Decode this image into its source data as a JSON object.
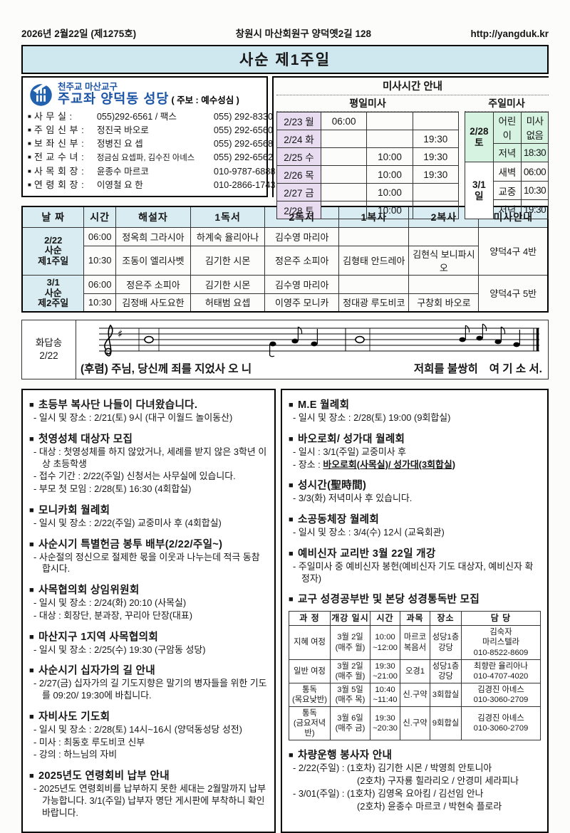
{
  "glyphs": {
    "bullet": "■"
  },
  "colors": {
    "title_fill": "#cfe7ef",
    "table_header_fill": "#d8ecf2",
    "weekday_date_fill": "#e7dcf0",
    "saturday_fill": "#d6f2e0",
    "logo_blue": "#1c55a6"
  },
  "page_header": {
    "date_issue": "2026년 2월22일 (제1275호)",
    "address": "창원시 마산회원구 양덕옛2길 128",
    "url": "http://yangduk.kr"
  },
  "title": "사순 제1주일",
  "church": {
    "diocese": "천주교 마산교구",
    "name": "주교좌 양덕동 성당",
    "patron_note": "( 주보 : 예수성심 )",
    "contacts": [
      {
        "label": "사  무  실 :",
        "value": "055)292-6561 / 팩스",
        "phone": "055) 292-8330"
      },
      {
        "label": "주 임 신 부 :",
        "value": "정진국 바오로",
        "phone": "055) 292-6560"
      },
      {
        "label": "보 좌 신 부 :",
        "value": "정병진 요  셉",
        "phone": "055) 292-6568"
      },
      {
        "label": "전 교 수 녀 :",
        "value": "정금심 요셉파, 김수진 아녜스",
        "phone": "055) 292-6562"
      },
      {
        "label": "사 목 회 장 :",
        "value": "윤종수 마르코",
        "phone": "010-9787-6888"
      },
      {
        "label": "연 령 회 장 :",
        "value": "이영철 요  한",
        "phone": "010-2866-1743"
      }
    ]
  },
  "mass_times": {
    "title": "미사시간 안내",
    "weekday": {
      "header": "평일미사",
      "rows": [
        {
          "day": "2/23 월",
          "t1": "06:00",
          "t2": "",
          "t3": ""
        },
        {
          "day": "2/24 화",
          "t1": "",
          "t2": "",
          "t3": "19:30"
        },
        {
          "day": "2/25 수",
          "t1": "",
          "t2": "10:00",
          "t3": "19:30"
        },
        {
          "day": "2/26 목",
          "t1": "",
          "t2": "10:00",
          "t3": "19:30"
        },
        {
          "day": "2/27 금",
          "t1": "",
          "t2": "10:00",
          "t3": ""
        },
        {
          "day": "2/28 토",
          "t1": "",
          "t2": "10:00",
          "t3": ""
        }
      ]
    },
    "sunday": {
      "header": "주일미사",
      "groups": [
        {
          "day": "2/28\n토",
          "green": true,
          "rows": [
            [
              "어린이",
              "미사없음"
            ],
            [
              "저녁",
              "18:30"
            ]
          ]
        },
        {
          "day": "3/1\n일",
          "green": false,
          "rows": [
            [
              "새벽",
              "06:00"
            ],
            [
              "교중",
              "10:30"
            ],
            [
              "저녁",
              "19:30"
            ]
          ]
        }
      ]
    }
  },
  "schedule_table": {
    "headers": [
      "날 짜",
      "시간",
      "해설자",
      "1독서",
      "2독서",
      "1복사",
      "2복사",
      "미사안내"
    ],
    "groups": [
      {
        "date": "2/22\n사순\n제1주일",
        "mass_note": "양덕4구  4반",
        "rows": [
          [
            "06:00",
            "정옥희 그라시아",
            "하계숙 율리아나",
            "김수영 마리아",
            "",
            ""
          ],
          [
            "10:30",
            "조동이 엘리사벳",
            "김기한 시몬",
            "정은주 소피아",
            "김형태 안드레아",
            "김현식 보니파시오"
          ]
        ]
      },
      {
        "date": "3/1\n사순\n제2주일",
        "mass_note": "양덕4구  5반",
        "rows": [
          [
            "06:00",
            "정은주 소피아",
            "김기한 시몬",
            "김수영 마리아",
            "",
            ""
          ],
          [
            "10:30",
            "김정배 사도요한",
            "허태범 요셉",
            "이영주 모니카",
            "정대광 루도비코",
            "구창회 바오로"
          ]
        ]
      }
    ]
  },
  "psalm": {
    "label": "화답송\n2/22",
    "lyric_seg1": "(후렴) 주님, 당신께 죄를 지었사 오 니",
    "lyric_seg2": "저희를 불쌍히",
    "lyric_seg3": "여 기 소 서."
  },
  "announcements": {
    "left": [
      {
        "title": "초등부 복사단 나들이 다녀왔습니다.",
        "lines": [
          "- 일시 및 장소 : 2/21(토) 9시 (대구 이월드 놀이동산)"
        ]
      },
      {
        "title": "첫영성체 대상자 모집",
        "lines": [
          "- 대상 : 첫영성체를 하지 않았거나, 세례를 받지 않은 3학년 이상 초등학생",
          "- 접수 기간 : 2/22(주일) 신청서는 사무실에 있습니다.",
          "- 부모 첫 모임 : 2/28(토) 16:30 (4회합실)"
        ]
      },
      {
        "title": "모니카회 월례회",
        "lines": [
          "- 일시 및 장소 : 2/22(주일) 교중미사 후 (4회합실)"
        ]
      },
      {
        "title": "사순시기 특별헌금 봉투 배부(2/22/주일~)",
        "lines": [
          "- 사순절의 정신으로 절제한 몫을 이웃과 나누는데 적극 동참합시다."
        ]
      },
      {
        "title": "사목협의회 상임위원회",
        "lines": [
          "- 일시 및 장소 : 2/24(화) 20:10 (사목실)",
          "- 대상 : 회장단, 분과장, 꾸리아 단장(대표)"
        ]
      },
      {
        "title": "마산지구 1지역 사목협의회",
        "lines": [
          "- 일시 및 장소 : 2/25(수) 19:30 (구암동 성당)"
        ]
      },
      {
        "title": "사순시기 십자가의 길 안내",
        "lines": [
          "- 2/27(금) 십자가의 길 기도지향은 말기의 병자들을 위한 기도를 09:20/ 19:30에 바칩니다."
        ]
      },
      {
        "title": "자비사도 기도회",
        "lines": [
          "- 일시 및 장소 : 2/28(토) 14시~16시 (양덕동성당 성전)",
          "- 미사 : 최동호 루도비코 신부",
          "- 강의 : 하느님의 자비"
        ]
      },
      {
        "title": "2025년도 연령회비 납부 안내",
        "lines": [
          "- 2025년도 연령회비를 납부하지 못한 세대는 2월말까지 납부 가능합니다. 3/1(주일) 납부자 명단 게시판에 부착하니 확인 바랍니다."
        ]
      }
    ],
    "right": [
      {
        "title": "M.E 월례회",
        "lines": [
          "- 일시 및 장소 : 2/28(토) 19:00 (9회합실)"
        ]
      },
      {
        "title": "바오로회/ 성가대 월례회",
        "lines": [
          "- 일시 : 3/1(주일) 교중미사 후",
          {
            "pre": "- 장소 : ",
            "strong": "바오로회(사목실)/ 성가대(3회합실)"
          }
        ]
      },
      {
        "title": "성시간(聖時間)",
        "lines": [
          "- 3/3(화) 저녁미사 후 있습니다."
        ]
      },
      {
        "title": "소공동체장 월례회",
        "lines": [
          "- 일시 및 장소 : 3/4(수) 12시 (교육회관)"
        ]
      },
      {
        "title": "예비신자 교리반 3월 22일 개강",
        "lines": [
          "- 주일미사 중 예비신자 봉헌(예비신자 기도 대상자, 예비신자 확정자)"
        ]
      },
      {
        "title": "교구 성경공부반 및 본당 성경통독반 모집",
        "table": true,
        "lines": []
      },
      {
        "title": "차량운행 봉사자 안내",
        "lines": [
          "- 2/22(주일) : (1호차) 김기한 시몬 / 박영희 안토니아",
          {
            "text": "(2호차) 구자룡 힐라리오 / 안경미 세라피나",
            "indent": true
          },
          "- 3/01(주일) : (1호차) 김영옥 요아킴 / 김선임 안나",
          {
            "text": "(2호차) 윤종수 마르코 / 박현숙 플로라",
            "indent": true
          }
        ]
      }
    ]
  },
  "bible_table": {
    "headers": [
      "과 정",
      "개강 일시",
      "시간",
      "과목",
      "장소",
      "담 당"
    ],
    "rows": [
      [
        "지혜 여정",
        "3월 2일\n(매주 월)",
        "10:00\n~12:00",
        "마르코\n복음서",
        "성당1층\n강당",
        "김숙자\n마리스텔라\n010-8522-8609"
      ],
      [
        "일반 여정",
        "3월 2일\n(매주 월)",
        "19:30\n~21:00",
        "오경1",
        "성당1층\n강당",
        "최향란 율리아나\n010-4707-4020"
      ],
      [
        "통독\n(목요낮반)",
        "3월 5일\n(매주 목)",
        "10:40\n~11:40",
        "신.구약",
        "3회합실",
        "김경진 아녜스\n010-3060-2709"
      ],
      [
        "통독\n(금요저녁반)",
        "3월 6일\n(매주 금)",
        "19:30\n~20:30",
        "신.구약",
        "9회합실",
        "김경진 아녜스\n010-3060-2709"
      ]
    ]
  }
}
